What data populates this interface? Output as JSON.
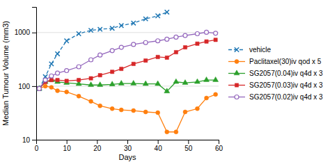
{
  "chart_data": {
    "type": "line",
    "xlabel": "Days",
    "ylabel": "Median Tumour Volume (mm3)",
    "log": "y",
    "grid": true,
    "legend": "right",
    "xlim": [
      0,
      60
    ],
    "ylim": [
      10,
      3000
    ],
    "xticks": [
      0,
      10,
      20,
      30,
      40,
      50,
      60
    ],
    "yticks": [
      10,
      100,
      1000
    ],
    "x": [
      1,
      3,
      5,
      7,
      10,
      14,
      18,
      21,
      25,
      28,
      32,
      36,
      40,
      43,
      46,
      49,
      53,
      56,
      59
    ],
    "series": [
      {
        "name": "vehicle",
        "marker": "x",
        "line_style": "dashed",
        "values": [
          90,
          150,
          260,
          400,
          700,
          950,
          1100,
          1150,
          1200,
          1350,
          1500,
          1800,
          2050,
          2400,
          null,
          null,
          null,
          null,
          null
        ]
      },
      {
        "name": "Paclitaxel(30)iv qod x 5",
        "marker": "circle",
        "line_style": "solid",
        "values": [
          90,
          100,
          95,
          82,
          78,
          65,
          52,
          43,
          38,
          36,
          35,
          33,
          32,
          14,
          14,
          33,
          38,
          60,
          70
        ]
      },
      {
        "name": "SG2057(0.04)iv q4d x 3",
        "marker": "triangle",
        "line_style": "solid",
        "values": [
          90,
          120,
          130,
          120,
          115,
          110,
          105,
          105,
          108,
          112,
          112,
          110,
          110,
          80,
          120,
          115,
          120,
          130,
          130
        ]
      },
      {
        "name": "SG2057(0.03)iv q4d x 3",
        "marker": "square",
        "line_style": "solid",
        "values": [
          90,
          120,
          130,
          130,
          125,
          130,
          140,
          160,
          185,
          210,
          260,
          300,
          350,
          340,
          430,
          530,
          620,
          680,
          730
        ]
      },
      {
        "name": "SG2057(0.02)iv q4d x 3",
        "marker": "circle-open",
        "line_style": "solid",
        "values": [
          90,
          130,
          155,
          175,
          195,
          230,
          310,
          380,
          460,
          530,
          600,
          650,
          700,
          750,
          820,
          880,
          950,
          1010,
          970
        ]
      }
    ]
  }
}
